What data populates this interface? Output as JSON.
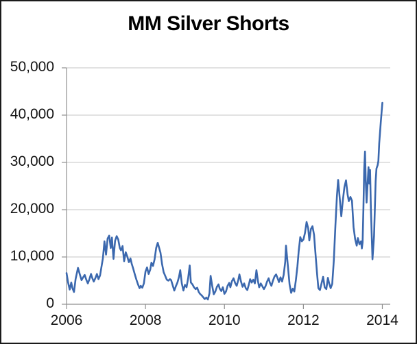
{
  "frame": {
    "background": "#ffffff",
    "border_color": "#1b1b1b"
  },
  "chart_data": {
    "type": "line",
    "title": "MM Silver Shorts",
    "title_color": "#000000",
    "xlabel": "",
    "ylabel": "",
    "xlim": [
      2006,
      2014.2
    ],
    "ylim": [
      0,
      50000
    ],
    "legend_position": "none",
    "grid": {
      "show_horizontal": true,
      "show_vertical": false,
      "color": "#c6c6c6"
    },
    "axis_color": "#8f8f8f",
    "tick_label_color": "#141414",
    "x_ticks": [
      {
        "value": 2006,
        "label": "2006"
      },
      {
        "value": 2008,
        "label": "2008"
      },
      {
        "value": 2010,
        "label": "2010"
      },
      {
        "value": 2012,
        "label": "2012"
      },
      {
        "value": 2014,
        "label": "2014"
      }
    ],
    "y_ticks": [
      {
        "value": 0,
        "label": "0"
      },
      {
        "value": 10000,
        "label": "10,000"
      },
      {
        "value": 20000,
        "label": "20,000"
      },
      {
        "value": 30000,
        "label": "30,000"
      },
      {
        "value": 40000,
        "label": "40,000"
      },
      {
        "value": 50000,
        "label": "50,000"
      }
    ],
    "series": [
      {
        "name": "MM Silver Shorts",
        "color": "#3b68ae",
        "line_width": 2.6,
        "points": [
          [
            2006.0,
            6600
          ],
          [
            2006.04,
            4600
          ],
          [
            2006.08,
            3100
          ],
          [
            2006.12,
            4600
          ],
          [
            2006.15,
            3400
          ],
          [
            2006.19,
            2600
          ],
          [
            2006.23,
            5300
          ],
          [
            2006.29,
            7700
          ],
          [
            2006.33,
            6500
          ],
          [
            2006.38,
            5100
          ],
          [
            2006.42,
            5700
          ],
          [
            2006.46,
            6200
          ],
          [
            2006.5,
            5200
          ],
          [
            2006.54,
            4400
          ],
          [
            2006.58,
            5300
          ],
          [
            2006.62,
            6400
          ],
          [
            2006.65,
            5600
          ],
          [
            2006.69,
            4800
          ],
          [
            2006.73,
            5500
          ],
          [
            2006.77,
            6400
          ],
          [
            2006.81,
            5300
          ],
          [
            2006.85,
            6100
          ],
          [
            2006.88,
            7700
          ],
          [
            2006.92,
            9700
          ],
          [
            2006.96,
            13300
          ],
          [
            2007.0,
            10500
          ],
          [
            2007.04,
            13900
          ],
          [
            2007.08,
            14500
          ],
          [
            2007.12,
            11900
          ],
          [
            2007.15,
            14100
          ],
          [
            2007.19,
            9600
          ],
          [
            2007.23,
            13400
          ],
          [
            2007.27,
            14400
          ],
          [
            2007.31,
            13700
          ],
          [
            2007.35,
            11900
          ],
          [
            2007.38,
            11400
          ],
          [
            2007.42,
            12300
          ],
          [
            2007.46,
            9100
          ],
          [
            2007.5,
            11000
          ],
          [
            2007.54,
            10100
          ],
          [
            2007.58,
            8900
          ],
          [
            2007.62,
            9700
          ],
          [
            2007.65,
            8600
          ],
          [
            2007.69,
            7500
          ],
          [
            2007.73,
            6300
          ],
          [
            2007.77,
            5200
          ],
          [
            2007.81,
            4200
          ],
          [
            2007.85,
            3400
          ],
          [
            2007.88,
            3900
          ],
          [
            2007.92,
            3500
          ],
          [
            2007.96,
            4400
          ],
          [
            2008.0,
            6900
          ],
          [
            2008.04,
            7800
          ],
          [
            2008.08,
            6400
          ],
          [
            2008.12,
            7300
          ],
          [
            2008.15,
            8800
          ],
          [
            2008.19,
            8100
          ],
          [
            2008.23,
            9500
          ],
          [
            2008.27,
            11900
          ],
          [
            2008.31,
            13000
          ],
          [
            2008.35,
            11800
          ],
          [
            2008.38,
            10900
          ],
          [
            2008.42,
            8500
          ],
          [
            2008.46,
            6800
          ],
          [
            2008.5,
            6000
          ],
          [
            2008.54,
            5200
          ],
          [
            2008.58,
            5000
          ],
          [
            2008.62,
            5300
          ],
          [
            2008.65,
            5100
          ],
          [
            2008.69,
            4000
          ],
          [
            2008.73,
            2900
          ],
          [
            2008.77,
            3800
          ],
          [
            2008.81,
            4600
          ],
          [
            2008.85,
            5800
          ],
          [
            2008.88,
            7200
          ],
          [
            2008.92,
            4400
          ],
          [
            2008.96,
            2900
          ],
          [
            2009.0,
            4100
          ],
          [
            2009.04,
            3600
          ],
          [
            2009.08,
            5500
          ],
          [
            2009.12,
            8200
          ],
          [
            2009.15,
            4600
          ],
          [
            2009.19,
            4200
          ],
          [
            2009.23,
            3600
          ],
          [
            2009.27,
            3200
          ],
          [
            2009.31,
            3500
          ],
          [
            2009.35,
            2600
          ],
          [
            2009.38,
            2200
          ],
          [
            2009.42,
            1900
          ],
          [
            2009.46,
            1500
          ],
          [
            2009.5,
            1100
          ],
          [
            2009.54,
            1400
          ],
          [
            2009.58,
            1000
          ],
          [
            2009.62,
            2300
          ],
          [
            2009.65,
            6000
          ],
          [
            2009.69,
            3900
          ],
          [
            2009.73,
            2100
          ],
          [
            2009.77,
            2700
          ],
          [
            2009.81,
            3700
          ],
          [
            2009.85,
            4200
          ],
          [
            2009.88,
            3300
          ],
          [
            2009.92,
            2800
          ],
          [
            2009.96,
            3600
          ],
          [
            2010.0,
            2200
          ],
          [
            2010.04,
            2700
          ],
          [
            2010.08,
            3900
          ],
          [
            2010.12,
            4500
          ],
          [
            2010.15,
            3600
          ],
          [
            2010.19,
            4900
          ],
          [
            2010.23,
            5500
          ],
          [
            2010.27,
            4500
          ],
          [
            2010.31,
            3900
          ],
          [
            2010.35,
            5100
          ],
          [
            2010.38,
            6300
          ],
          [
            2010.42,
            4800
          ],
          [
            2010.46,
            3700
          ],
          [
            2010.5,
            4400
          ],
          [
            2010.54,
            3400
          ],
          [
            2010.58,
            3000
          ],
          [
            2010.62,
            4200
          ],
          [
            2010.65,
            5300
          ],
          [
            2010.69,
            4600
          ],
          [
            2010.73,
            5200
          ],
          [
            2010.77,
            4400
          ],
          [
            2010.81,
            7200
          ],
          [
            2010.85,
            4800
          ],
          [
            2010.88,
            3600
          ],
          [
            2010.92,
            4400
          ],
          [
            2010.96,
            3800
          ],
          [
            2011.0,
            3200
          ],
          [
            2011.04,
            3800
          ],
          [
            2011.08,
            4800
          ],
          [
            2011.12,
            5500
          ],
          [
            2011.15,
            4600
          ],
          [
            2011.19,
            3900
          ],
          [
            2011.23,
            5000
          ],
          [
            2011.27,
            5900
          ],
          [
            2011.31,
            6300
          ],
          [
            2011.35,
            5400
          ],
          [
            2011.38,
            4700
          ],
          [
            2011.42,
            5700
          ],
          [
            2011.46,
            4800
          ],
          [
            2011.5,
            6200
          ],
          [
            2011.54,
            9000
          ],
          [
            2011.56,
            12400
          ],
          [
            2011.6,
            8800
          ],
          [
            2011.65,
            4200
          ],
          [
            2011.69,
            2400
          ],
          [
            2011.73,
            3300
          ],
          [
            2011.77,
            2700
          ],
          [
            2011.81,
            5100
          ],
          [
            2011.85,
            8100
          ],
          [
            2011.88,
            11200
          ],
          [
            2011.92,
            14200
          ],
          [
            2011.96,
            13300
          ],
          [
            2012.0,
            13700
          ],
          [
            2012.04,
            15100
          ],
          [
            2012.08,
            17400
          ],
          [
            2012.12,
            16100
          ],
          [
            2012.15,
            13500
          ],
          [
            2012.19,
            15900
          ],
          [
            2012.23,
            16500
          ],
          [
            2012.27,
            14700
          ],
          [
            2012.31,
            10300
          ],
          [
            2012.35,
            6100
          ],
          [
            2012.38,
            3400
          ],
          [
            2012.42,
            3000
          ],
          [
            2012.46,
            4400
          ],
          [
            2012.5,
            5800
          ],
          [
            2012.54,
            3600
          ],
          [
            2012.58,
            3200
          ],
          [
            2012.62,
            5600
          ],
          [
            2012.65,
            4500
          ],
          [
            2012.69,
            3400
          ],
          [
            2012.73,
            4300
          ],
          [
            2012.77,
            9200
          ],
          [
            2012.81,
            16500
          ],
          [
            2012.85,
            23000
          ],
          [
            2012.88,
            26300
          ],
          [
            2012.92,
            22500
          ],
          [
            2012.96,
            18600
          ],
          [
            2013.0,
            22000
          ],
          [
            2013.04,
            24800
          ],
          [
            2013.08,
            26200
          ],
          [
            2013.12,
            23200
          ],
          [
            2013.15,
            21800
          ],
          [
            2013.19,
            22700
          ],
          [
            2013.23,
            21900
          ],
          [
            2013.27,
            16300
          ],
          [
            2013.31,
            13800
          ],
          [
            2013.35,
            12400
          ],
          [
            2013.38,
            14000
          ],
          [
            2013.42,
            12700
          ],
          [
            2013.46,
            13300
          ],
          [
            2013.48,
            11800
          ],
          [
            2013.5,
            13100
          ],
          [
            2013.52,
            20500
          ],
          [
            2013.54,
            28500
          ],
          [
            2013.56,
            32300
          ],
          [
            2013.58,
            26000
          ],
          [
            2013.6,
            21500
          ],
          [
            2013.62,
            24500
          ],
          [
            2013.65,
            29000
          ],
          [
            2013.67,
            25500
          ],
          [
            2013.69,
            28400
          ],
          [
            2013.71,
            20000
          ],
          [
            2013.73,
            15000
          ],
          [
            2013.75,
            9500
          ],
          [
            2013.79,
            14500
          ],
          [
            2013.81,
            20500
          ],
          [
            2013.83,
            26000
          ],
          [
            2013.85,
            28700
          ],
          [
            2013.88,
            29400
          ],
          [
            2013.9,
            30300
          ],
          [
            2013.92,
            34000
          ],
          [
            2013.96,
            38500
          ],
          [
            2014.0,
            42600
          ]
        ]
      }
    ]
  }
}
